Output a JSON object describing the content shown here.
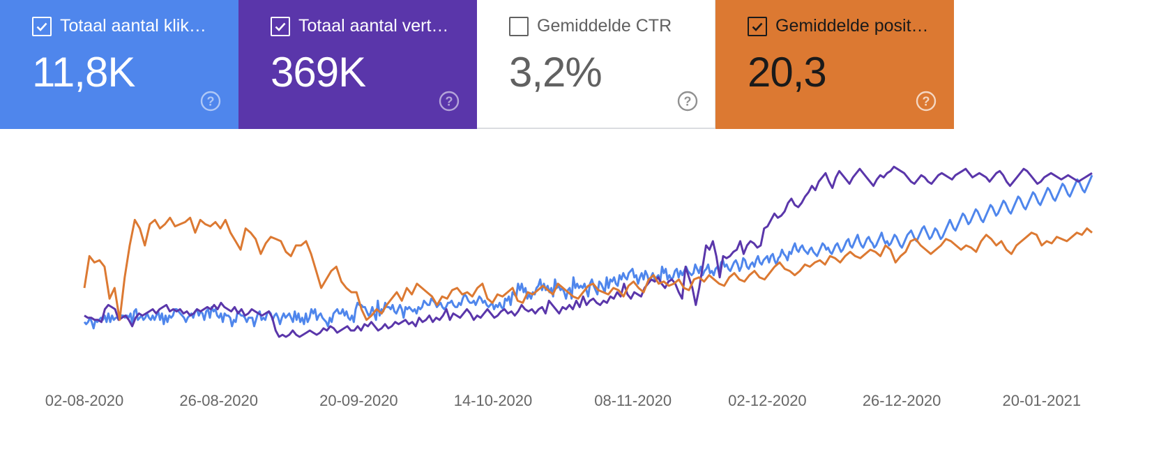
{
  "metrics": [
    {
      "label": "Totaal aantal klik…",
      "value": "11,8K",
      "checked": true,
      "bg": "#4f86ec",
      "fg": "#ffffff",
      "icon": "help-circle-icon"
    },
    {
      "label": "Totaal aantal vert…",
      "value": "369K",
      "checked": true,
      "bg": "#5a36aa",
      "fg": "#ffffff",
      "icon": "help-circle-icon"
    },
    {
      "label": "Gemiddelde CTR",
      "value": "3,2%",
      "checked": false,
      "bg": "#ffffff",
      "fg": "#616161",
      "icon": "help-circle-icon"
    },
    {
      "label": "Gemiddelde posit…",
      "value": "20,3",
      "checked": true,
      "bg": "#dc7932",
      "fg": "#1a1a1a",
      "icon": "help-circle-icon"
    }
  ],
  "chart_data": {
    "type": "line",
    "x_tick_labels": [
      "02-08-2020",
      "26-08-2020",
      "20-09-2020",
      "14-10-2020",
      "08-11-2020",
      "02-12-2020",
      "26-12-2020",
      "20-01-2021"
    ],
    "x_tick_day_index": [
      0,
      24,
      49,
      73,
      98,
      122,
      146,
      171
    ],
    "y_axis": "hidden (each series on its own relative scale)",
    "ylim": [
      0,
      100
    ],
    "grid": false,
    "series": [
      {
        "name": "Totaal aantal klikken",
        "color": "#4f86ec",
        "values": [
          24,
          23,
          24,
          26,
          24,
          21,
          25,
          24,
          25,
          26,
          25,
          27,
          24,
          28,
          24,
          27,
          25,
          26,
          26,
          28,
          27,
          27,
          26,
          27,
          26,
          28,
          23,
          29,
          30,
          25,
          26,
          27,
          25,
          26,
          28,
          26,
          25,
          27,
          25,
          27,
          29,
          25,
          28,
          23,
          27,
          24,
          27,
          26,
          27,
          30,
          30,
          29,
          28,
          27,
          26,
          24,
          26,
          27,
          28,
          26,
          29,
          30,
          27,
          29,
          28,
          25,
          29,
          30,
          26,
          31,
          29,
          30,
          27,
          26,
          28,
          24,
          28,
          27,
          27,
          26,
          22,
          25,
          24,
          29,
          28,
          27,
          27,
          26,
          24,
          26,
          26,
          26,
          22,
          25,
          28,
          29,
          25,
          26,
          25,
          28,
          29,
          28,
          25,
          27,
          28,
          26,
          23,
          26,
          28,
          26,
          27,
          28,
          26,
          24,
          29,
          25,
          28,
          24,
          26,
          23,
          28,
          24,
          26,
          30,
          28,
          30,
          25,
          27,
          28,
          26,
          25,
          24,
          22,
          26,
          24,
          28,
          29,
          30,
          28,
          28,
          30,
          27,
          29,
          26,
          25,
          27,
          24,
          30,
          33,
          32,
          32,
          31,
          31,
          29,
          27,
          28,
          31,
          28,
          25,
          34,
          27,
          30,
          29,
          33,
          31,
          31,
          30,
          32,
          29,
          28,
          30,
          32,
          30,
          26,
          31,
          30,
          31,
          30,
          29,
          30,
          28,
          31,
          30,
          31,
          34,
          33,
          32,
          32,
          35,
          34,
          33,
          31,
          32,
          33,
          31,
          30,
          31,
          33,
          33,
          34,
          32,
          31,
          31,
          33,
          32,
          35,
          37,
          36,
          34,
          33,
          33,
          34,
          32,
          34,
          36,
          35,
          33,
          34,
          32,
          31,
          32,
          33,
          30,
          32,
          31,
          33,
          31,
          30,
          35,
          34,
          36,
          32,
          38,
          37,
          36,
          42,
          39,
          42,
          38,
          40,
          35,
          37,
          35,
          38,
          37,
          40,
          41,
          44,
          39,
          42,
          39,
          41,
          38,
          40,
          36,
          44,
          40,
          41,
          39,
          40,
          38,
          35,
          39,
          40,
          35,
          45,
          40,
          42,
          40,
          41,
          40,
          42,
          39,
          36,
          42,
          44,
          41,
          39,
          37,
          43,
          42,
          40,
          38,
          45,
          40,
          44,
          43,
          45,
          42,
          41,
          46,
          44,
          47,
          45,
          44,
          47,
          48,
          49,
          45,
          46,
          42,
          45,
          47,
          44,
          48,
          46,
          43,
          45,
          47,
          44,
          45,
          46,
          43,
          50,
          47,
          49,
          44,
          46,
          44,
          45,
          48,
          49,
          45,
          48,
          46,
          48,
          50,
          48,
          47,
          46,
          47,
          51,
          49,
          47,
          50,
          46,
          48,
          49,
          51,
          47,
          48,
          46,
          49,
          50,
          47,
          52,
          53,
          50,
          51,
          49,
          48,
          50,
          52,
          53,
          51,
          48,
          50,
          54,
          53,
          50,
          49,
          51,
          52,
          50,
          53,
          55,
          52,
          51,
          53,
          54,
          55,
          52,
          55,
          56,
          53,
          51,
          54,
          55,
          58,
          56,
          55,
          53,
          57,
          56,
          59,
          61,
          58,
          57,
          59,
          60,
          58,
          57,
          56,
          58,
          59,
          57,
          56,
          55,
          57,
          59,
          61,
          60,
          58,
          59,
          57,
          56,
          58,
          60,
          61,
          59,
          57,
          58,
          60,
          62,
          63,
          60,
          59,
          61,
          63,
          65,
          62,
          60,
          59,
          61,
          63,
          64,
          62,
          61,
          59,
          60,
          62,
          64,
          66,
          63,
          61,
          62,
          60,
          61,
          63,
          65,
          64,
          62,
          60,
          59,
          61,
          63,
          65,
          66,
          67,
          65,
          63,
          62,
          64,
          66,
          68,
          69,
          67,
          65,
          63,
          64,
          66,
          68,
          67,
          65,
          63,
          64,
          66,
          68,
          70,
          72,
          70,
          68,
          67,
          69,
          71,
          73,
          75,
          74,
          72,
          70,
          71,
          73,
          75,
          77,
          76,
          74,
          72,
          71,
          73,
          75,
          77,
          79,
          78,
          76,
          74,
          75,
          77,
          79,
          81,
          80,
          78,
          76,
          75,
          77,
          79,
          81,
          83,
          82,
          80,
          78,
          77,
          79,
          81,
          83,
          85,
          84,
          82,
          80,
          79,
          81,
          83,
          85,
          87,
          86,
          84,
          82,
          81,
          83,
          85,
          87,
          89,
          88,
          86,
          84,
          83,
          85,
          87,
          89,
          91,
          90,
          88,
          86,
          85,
          87,
          89,
          91,
          93
        ]
      },
      {
        "name": "Totaal aantal vertoningen",
        "color": "#5a36aa",
        "values": [
          27,
          26,
          26,
          25,
          25,
          24,
          30,
          32,
          31,
          30,
          25,
          26,
          27,
          25,
          22,
          26,
          28,
          27,
          28,
          29,
          30,
          28,
          30,
          31,
          32,
          29,
          30,
          29,
          30,
          28,
          29,
          27,
          28,
          30,
          29,
          30,
          31,
          30,
          32,
          30,
          33,
          31,
          30,
          29,
          31,
          28,
          30,
          27,
          28,
          30,
          29,
          28,
          27,
          28,
          29,
          26,
          20,
          17,
          18,
          17,
          18,
          20,
          18,
          17,
          18,
          19,
          20,
          19,
          18,
          19,
          21,
          20,
          22,
          21,
          19,
          20,
          21,
          22,
          20,
          20,
          22,
          20,
          23,
          22,
          24,
          22,
          20,
          21,
          23,
          21,
          22,
          24,
          23,
          24,
          25,
          23,
          24,
          22,
          26,
          24,
          25,
          27,
          24,
          26,
          25,
          27,
          30,
          25,
          28,
          27,
          26,
          28,
          30,
          28,
          25,
          27,
          26,
          28,
          30,
          28,
          26,
          27,
          29,
          30,
          28,
          29,
          27,
          29,
          32,
          30,
          29,
          30,
          28,
          30,
          31,
          28,
          34,
          32,
          30,
          28,
          31,
          30,
          32,
          30,
          34,
          31,
          36,
          32,
          34,
          35,
          33,
          32,
          34,
          33,
          36,
          35,
          38,
          36,
          42,
          37,
          35,
          38,
          37,
          36,
          40,
          42,
          44,
          43,
          45,
          42,
          40,
          43,
          44,
          42,
          38,
          35,
          50,
          45,
          40,
          32,
          40,
          50,
          60,
          58,
          62,
          55,
          45,
          55,
          54,
          55,
          57,
          58,
          62,
          56,
          60,
          62,
          61,
          59,
          60,
          68,
          69,
          72,
          75,
          73,
          74,
          76,
          80,
          82,
          79,
          78,
          80,
          83,
          85,
          88,
          86,
          90,
          92,
          94,
          90,
          87,
          92,
          95,
          93,
          91,
          89,
          92,
          94,
          96,
          94,
          92,
          90,
          88,
          91,
          93,
          92,
          94,
          95,
          97,
          96,
          95,
          94,
          92,
          90,
          89,
          91,
          93,
          92,
          90,
          89,
          91,
          93,
          94,
          93,
          92,
          91,
          93,
          94,
          95,
          96,
          94,
          92,
          93,
          94,
          93,
          92,
          90,
          92,
          94,
          95,
          93,
          90,
          88,
          90,
          92,
          94,
          96,
          95,
          93,
          91,
          89,
          90,
          92,
          93,
          94,
          93,
          92,
          91,
          92,
          93,
          92,
          91,
          90,
          91,
          92,
          93,
          94
        ]
      },
      {
        "name": "Gemiddelde positie",
        "color": "#dc7932",
        "values": [
          40,
          55,
          52,
          53,
          50,
          35,
          40,
          25,
          45,
          60,
          72,
          68,
          60,
          70,
          72,
          68,
          70,
          73,
          69,
          70,
          71,
          73,
          66,
          72,
          70,
          69,
          71,
          68,
          72,
          66,
          62,
          58,
          68,
          66,
          63,
          56,
          61,
          64,
          63,
          62,
          57,
          55,
          60,
          60,
          62,
          56,
          48,
          40,
          44,
          48,
          50,
          43,
          40,
          38,
          38,
          30,
          25,
          27,
          30,
          28,
          32,
          35,
          38,
          34,
          40,
          37,
          42,
          40,
          38,
          36,
          32,
          36,
          35,
          39,
          40,
          37,
          38,
          36,
          40,
          42,
          35,
          33,
          37,
          36,
          38,
          40,
          34,
          33,
          38,
          37,
          39,
          41,
          39,
          37,
          42,
          40,
          38,
          36,
          35,
          38,
          41,
          42,
          39,
          38,
          37,
          40,
          39,
          36,
          41,
          43,
          40,
          38,
          44,
          46,
          42,
          43,
          41,
          42,
          44,
          40,
          39,
          44,
          45,
          43,
          46,
          44,
          42,
          41,
          45,
          47,
          44,
          43,
          46,
          48,
          45,
          44,
          47,
          50,
          52,
          49,
          48,
          46,
          48,
          51,
          50,
          52,
          53,
          51,
          55,
          54,
          52,
          55,
          57,
          55,
          54,
          56,
          58,
          57,
          55,
          60,
          58,
          52,
          55,
          57,
          62,
          63,
          60,
          58,
          56,
          58,
          60,
          63,
          62,
          60,
          58,
          60,
          59,
          57,
          62,
          65,
          63,
          60,
          62,
          58,
          56,
          60,
          62,
          64,
          66,
          65,
          60,
          62,
          61,
          64,
          63,
          62,
          64,
          66,
          65,
          68,
          66
        ]
      }
    ]
  }
}
